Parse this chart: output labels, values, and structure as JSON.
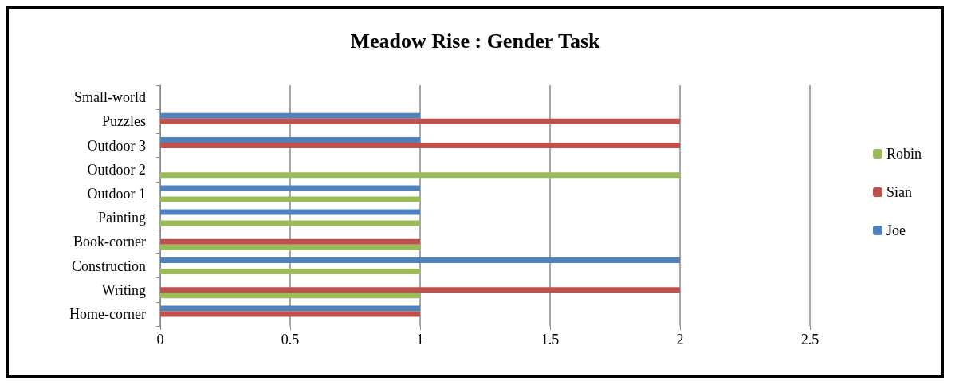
{
  "chart_data": {
    "type": "bar",
    "orientation": "horizontal",
    "title": "Meadow Rise : Gender Task",
    "categories": [
      "Small-world",
      "Puzzles",
      "Outdoor 3",
      "Outdoor 2",
      "Outdoor 1",
      "Painting",
      "Book-corner",
      "Construction",
      "Writing",
      "Home-corner"
    ],
    "series": [
      {
        "name": "Joe",
        "color": "#4f81bd",
        "values": [
          0,
          1,
          1,
          0,
          1,
          1,
          0,
          2,
          0,
          1
        ]
      },
      {
        "name": "Sian",
        "color": "#c0504d",
        "values": [
          0,
          2,
          2,
          0,
          0,
          0,
          1,
          0,
          2,
          1
        ]
      },
      {
        "name": "Robin",
        "color": "#9bbb59",
        "values": [
          0,
          0,
          0,
          2,
          1,
          1,
          1,
          1,
          1,
          0
        ]
      }
    ],
    "xlim": [
      0,
      2.5
    ],
    "xticks": [
      0,
      0.5,
      1,
      1.5,
      2,
      2.5
    ],
    "grid": "x",
    "legend": "right"
  }
}
